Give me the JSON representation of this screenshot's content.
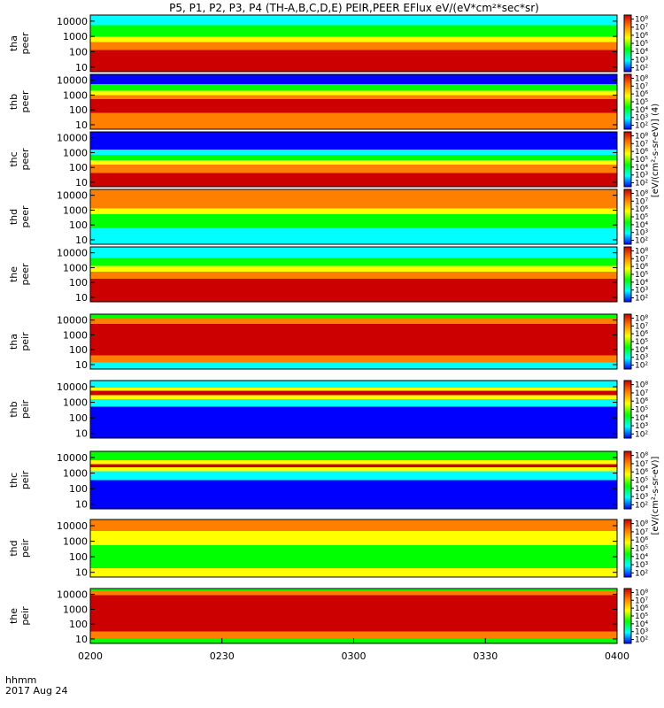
{
  "chart_data": {
    "type": "heatmap",
    "title": "P5, P1, P2, P3, P4 (TH-A,B,C,D,E) PEIR,PEER EFlux eV/(eV*cm²*sec*sr)",
    "x_tick_labels": [
      "0200",
      "0230",
      "0300",
      "0330",
      "0400"
    ],
    "xlim": [
      "02:00",
      "04:00"
    ],
    "x_corner_labels": [
      "hhmm",
      "2017 Aug 24"
    ],
    "y_scale": "log",
    "y_tick_labels": [
      "10",
      "100",
      "1000",
      "10000"
    ],
    "ylim": [
      5,
      25000
    ],
    "colorbar": {
      "scale": "log",
      "tick_labels": [
        "10²",
        "10³",
        "10⁴",
        "10⁵",
        "10⁶",
        "10⁷",
        "10⁸"
      ],
      "label_peer": "[eV/(cm²-s-sr-eV)] (4)",
      "label_peir": "[eV/(cm²-s-sr-eV)]"
    },
    "colors": {
      "low": "#0000ff",
      "mid_low": "#00ffff",
      "mid": "#00ff00",
      "mid_high": "#ffff00",
      "high": "#ff8000",
      "max": "#cc0000"
    },
    "panels": [
      {
        "label_line1": "tha",
        "label_line2": "peer",
        "profile": [
          [
            "red",
            0.0,
            0.38
          ],
          [
            "orange",
            0.38,
            0.52
          ],
          [
            "yellow",
            0.52,
            0.62
          ],
          [
            "green",
            0.62,
            0.82
          ],
          [
            "cyan",
            0.82,
            1.0
          ]
        ]
      },
      {
        "label_line1": "thb",
        "label_line2": "peer",
        "profile": [
          [
            "orange",
            0.0,
            0.3
          ],
          [
            "red",
            0.3,
            0.55
          ],
          [
            "orange",
            0.55,
            0.62
          ],
          [
            "yellow",
            0.62,
            0.7
          ],
          [
            "green",
            0.7,
            0.82
          ],
          [
            "blue",
            0.82,
            1.0
          ]
        ]
      },
      {
        "label_line1": "thc",
        "label_line2": "peer",
        "profile": [
          [
            "red",
            0.0,
            0.25
          ],
          [
            "orange",
            0.25,
            0.4
          ],
          [
            "yellow",
            0.4,
            0.48
          ],
          [
            "green",
            0.48,
            0.58
          ],
          [
            "cyan",
            0.58,
            0.68
          ],
          [
            "blue",
            0.68,
            1.0
          ]
        ]
      },
      {
        "label_line1": "thd",
        "label_line2": "peer",
        "profile": [
          [
            "cyan",
            0.0,
            0.3
          ],
          [
            "green",
            0.3,
            0.55
          ],
          [
            "yellow",
            0.55,
            0.65
          ],
          [
            "orange",
            0.65,
            1.0
          ]
        ]
      },
      {
        "label_line1": "the",
        "label_line2": "peer",
        "profile": [
          [
            "red",
            0.0,
            0.42
          ],
          [
            "orange",
            0.42,
            0.55
          ],
          [
            "yellow",
            0.55,
            0.65
          ],
          [
            "green",
            0.65,
            0.8
          ],
          [
            "cyan",
            0.8,
            1.0
          ]
        ]
      },
      {
        "label_line1": "tha",
        "label_line2": "peir",
        "profile": [
          [
            "cyan",
            0.0,
            0.12
          ],
          [
            "orange",
            0.12,
            0.25
          ],
          [
            "red",
            0.25,
            0.82
          ],
          [
            "orange",
            0.82,
            0.92
          ],
          [
            "green",
            0.92,
            1.0
          ]
        ]
      },
      {
        "label_line1": "thb",
        "label_line2": "peir",
        "profile": [
          [
            "blue",
            0.0,
            0.55
          ],
          [
            "cyan",
            0.55,
            0.68
          ],
          [
            "yellow",
            0.68,
            0.75
          ],
          [
            "red",
            0.75,
            0.82
          ],
          [
            "yellow",
            0.82,
            0.88
          ],
          [
            "cyan",
            0.88,
            1.0
          ]
        ]
      },
      {
        "label_line1": "thc",
        "label_line2": "peir",
        "profile": [
          [
            "blue",
            0.0,
            0.5
          ],
          [
            "cyan",
            0.5,
            0.65
          ],
          [
            "yellow",
            0.65,
            0.72
          ],
          [
            "red",
            0.72,
            0.78
          ],
          [
            "yellow",
            0.78,
            0.85
          ],
          [
            "green",
            0.85,
            1.0
          ]
        ]
      },
      {
        "label_line1": "thd",
        "label_line2": "peir",
        "profile": [
          [
            "yellow",
            0.0,
            0.15
          ],
          [
            "green",
            0.15,
            0.55
          ],
          [
            "yellow",
            0.55,
            0.8
          ],
          [
            "orange",
            0.8,
            1.0
          ]
        ]
      },
      {
        "label_line1": "the",
        "label_line2": "peir",
        "profile": [
          [
            "green",
            0.0,
            0.1
          ],
          [
            "orange",
            0.1,
            0.22
          ],
          [
            "red",
            0.22,
            0.88
          ],
          [
            "orange",
            0.88,
            0.95
          ],
          [
            "green",
            0.95,
            1.0
          ]
        ]
      }
    ]
  }
}
